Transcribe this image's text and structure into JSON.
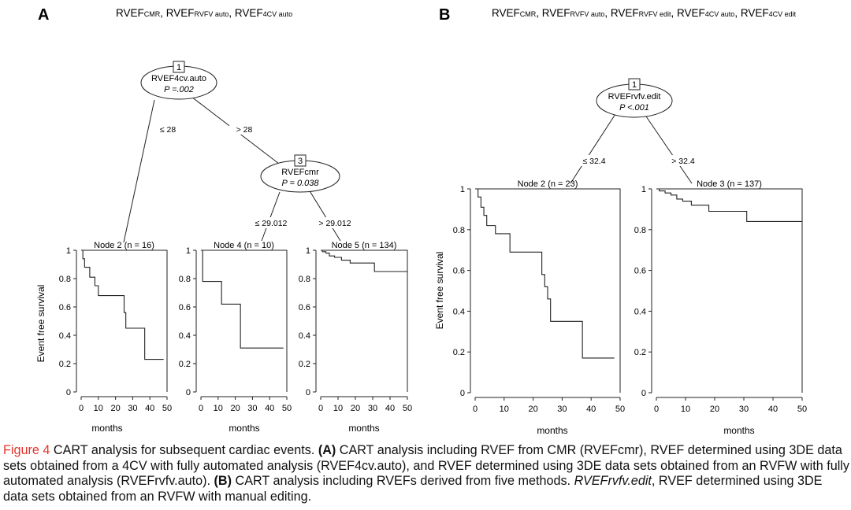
{
  "panels": {
    "A": {
      "letter": "A",
      "header": [
        {
          "t": "RVEF",
          "sub": false
        },
        {
          "t": "CMR",
          "sub": true
        },
        {
          "t": ", RVEF",
          "sub": false
        },
        {
          "t": "RVFV auto",
          "sub": true
        },
        {
          "t": ", RVEF",
          "sub": false
        },
        {
          "t": "4CV auto",
          "sub": true
        }
      ],
      "tree": {
        "nodes": [
          {
            "id": "1",
            "variable": "RVEF4cv.auto",
            "p": "P =.002"
          },
          {
            "id": "3",
            "variable": "RVEFcmr",
            "p": "P = 0.038"
          }
        ],
        "splits": [
          "≤ 28",
          "> 28",
          "≤ 29.012",
          "> 29.012"
        ]
      },
      "y_axis_label": "Event free survival",
      "x_axis_label": "months"
    },
    "B": {
      "letter": "B",
      "header": [
        {
          "t": "RVEF",
          "sub": false
        },
        {
          "t": "CMR",
          "sub": true
        },
        {
          "t": ", RVEF",
          "sub": false
        },
        {
          "t": "RVFV auto",
          "sub": true
        },
        {
          "t": ", RVEF",
          "sub": false
        },
        {
          "t": "RVFV edit",
          "sub": true
        },
        {
          "t": ", RVEF",
          "sub": false
        },
        {
          "t": "4CV auto",
          "sub": true
        },
        {
          "t": ", RVEF",
          "sub": false
        },
        {
          "t": "4CV edit",
          "sub": true
        }
      ],
      "tree": {
        "nodes": [
          {
            "id": "1",
            "variable": "RVEFrvfv.edit",
            "p": "P <.001"
          }
        ],
        "splits": [
          "≤ 32.4",
          "> 32.4"
        ]
      },
      "y_axis_label": "Event free survival",
      "x_axis_label": "months"
    }
  },
  "chart_data": [
    {
      "type": "line",
      "title": "Node 2 (n = 16)",
      "xlabel": "months",
      "ylabel": "Event free survival",
      "xlim": [
        0,
        50
      ],
      "ylim": [
        0,
        1
      ],
      "xticks": [
        0,
        10,
        20,
        30,
        40,
        50
      ],
      "yticks": [
        0,
        0.2,
        0.4,
        0.6,
        0.8,
        1
      ],
      "step": true,
      "x": [
        0,
        1,
        2,
        5,
        8,
        10,
        25,
        26,
        37,
        48
      ],
      "y": [
        1,
        0.94,
        0.88,
        0.81,
        0.75,
        0.68,
        0.56,
        0.45,
        0.23,
        0.23
      ]
    },
    {
      "type": "line",
      "title": "Node 4 (n = 10)",
      "xlabel": "months",
      "ylabel": "",
      "xlim": [
        0,
        50
      ],
      "ylim": [
        0,
        1
      ],
      "xticks": [
        0,
        10,
        20,
        30,
        40,
        50
      ],
      "yticks": [
        0,
        0.2,
        0.4,
        0.6,
        0.8,
        1
      ],
      "step": true,
      "x": [
        0,
        1,
        12,
        23,
        48
      ],
      "y": [
        1,
        0.78,
        0.62,
        0.31,
        0.31
      ]
    },
    {
      "type": "line",
      "title": "Node 5 (n = 134)",
      "xlabel": "months",
      "ylabel": "",
      "xlim": [
        0,
        50
      ],
      "ylim": [
        0,
        1
      ],
      "xticks": [
        0,
        10,
        20,
        30,
        40,
        50
      ],
      "yticks": [
        0,
        0.2,
        0.4,
        0.6,
        0.8,
        1
      ],
      "step": true,
      "x": [
        0,
        1,
        3,
        5,
        8,
        12,
        17,
        31,
        50
      ],
      "y": [
        1,
        0.99,
        0.98,
        0.96,
        0.95,
        0.93,
        0.91,
        0.85,
        0.85
      ]
    },
    {
      "type": "line",
      "title": "Node 2 (n = 23)",
      "xlabel": "months",
      "ylabel": "Event free survival",
      "xlim": [
        0,
        50
      ],
      "ylim": [
        0,
        1
      ],
      "xticks": [
        0,
        10,
        20,
        30,
        40,
        50
      ],
      "yticks": [
        0,
        0.2,
        0.4,
        0.6,
        0.8,
        1
      ],
      "step": true,
      "x": [
        0,
        1,
        2,
        3,
        4,
        7,
        12,
        23,
        24,
        25,
        26,
        37,
        48
      ],
      "y": [
        1,
        0.96,
        0.91,
        0.87,
        0.82,
        0.78,
        0.69,
        0.58,
        0.52,
        0.46,
        0.35,
        0.17,
        0.17
      ]
    },
    {
      "type": "line",
      "title": "Node 3 (n = 137)",
      "xlabel": "months",
      "ylabel": "",
      "xlim": [
        0,
        50
      ],
      "ylim": [
        0,
        1
      ],
      "xticks": [
        0,
        10,
        20,
        30,
        40,
        50
      ],
      "yticks": [
        0,
        0.2,
        0.4,
        0.6,
        0.8,
        1
      ],
      "step": true,
      "x": [
        0,
        1,
        3,
        5,
        7,
        9,
        12,
        18,
        31,
        50
      ],
      "y": [
        1,
        0.99,
        0.98,
        0.97,
        0.95,
        0.94,
        0.92,
        0.89,
        0.84,
        0.84
      ]
    }
  ],
  "caption": {
    "label": "Figure 4",
    "parts": [
      {
        "t": " CART analysis for subsequent cardiac events. ",
        "s": "n"
      },
      {
        "t": "(A)",
        "s": "b"
      },
      {
        "t": " CART analysis including RVEF from CMR (RVEFcmr), RVEF determined using 3DE data sets obtained from a 4CV with fully automated analysis (RVEF4cv.auto), and RVEF determined using 3DE data sets obtained from an RVFW with fully automated analysis (RVEFrvfv.auto). ",
        "s": "n"
      },
      {
        "t": "(B)",
        "s": "b"
      },
      {
        "t": " CART analysis including RVEFs derived from five methods. ",
        "s": "n"
      },
      {
        "t": "RVEFrvfv.edit",
        "s": "i"
      },
      {
        "t": ", RVEF determined using 3DE data sets obtained from an RVFW with manual editing.",
        "s": "n"
      }
    ]
  }
}
